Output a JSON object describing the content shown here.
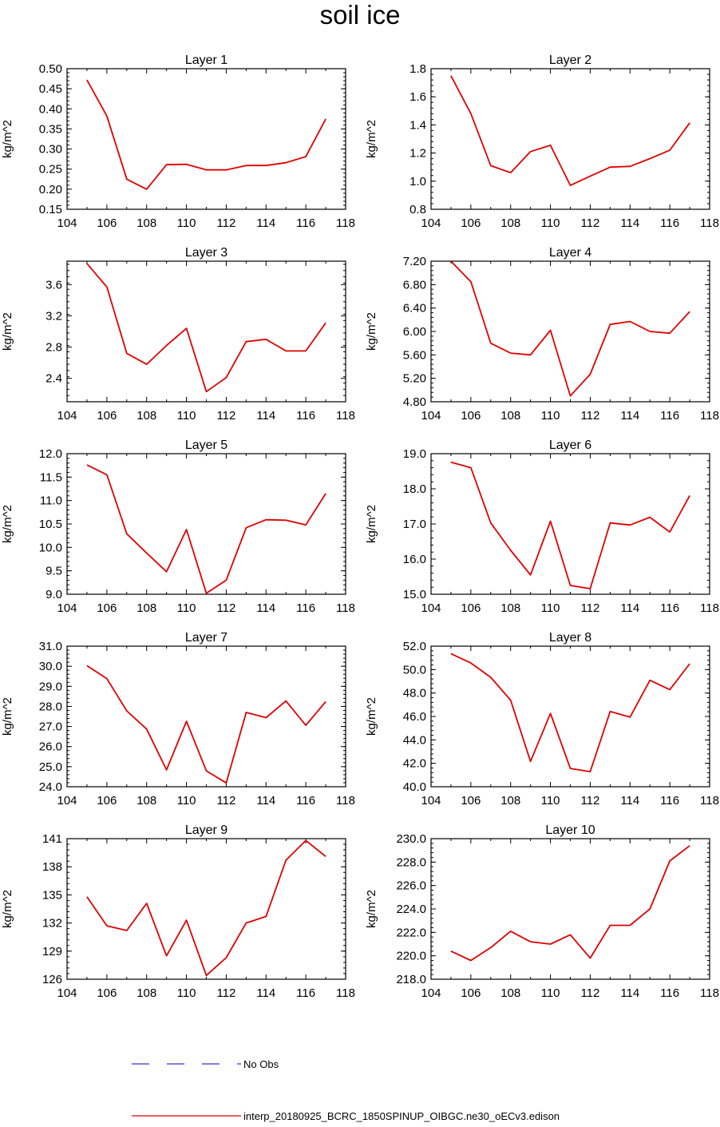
{
  "figure": {
    "title": "soil ice",
    "legend": [
      {
        "label": "No Obs",
        "color": "#0000cc",
        "dash": true
      },
      {
        "label": "interp_20180925_BCRC_1850SPINUP_OIBGC.ne30_oECv3.edison",
        "color": "#e00000",
        "dash": false
      }
    ]
  },
  "chart_data": [
    {
      "type": "line",
      "title": "Layer 1",
      "ylabel": "kg/m^2",
      "x": [
        105,
        106,
        107,
        108,
        109,
        110,
        111,
        112,
        113,
        114,
        115,
        116,
        117
      ],
      "series": [
        {
          "values": [
            0.472,
            0.382,
            0.225,
            0.2,
            0.261,
            0.262,
            0.248,
            0.248,
            0.259,
            0.259,
            0.266,
            0.281,
            0.375
          ],
          "color": "#e00000"
        }
      ],
      "xlim": [
        104,
        118
      ],
      "ylim": [
        0.15,
        0.5
      ],
      "xticks": [
        "104",
        "106",
        "108",
        "110",
        "112",
        "114",
        "116",
        "118"
      ],
      "yticks": [
        "0.15",
        "0.20",
        "0.25",
        "0.30",
        "0.35",
        "0.40",
        "0.45",
        "0.50"
      ]
    },
    {
      "type": "line",
      "title": "Layer 2",
      "ylabel": "kg/m^2",
      "x": [
        105,
        106,
        107,
        108,
        109,
        110,
        111,
        112,
        113,
        114,
        115,
        116,
        117
      ],
      "series": [
        {
          "values": [
            1.75,
            1.48,
            1.11,
            1.06,
            1.21,
            1.255,
            0.97,
            1.035,
            1.1,
            1.105,
            1.16,
            1.22,
            1.415
          ],
          "color": "#e00000"
        }
      ],
      "xlim": [
        104,
        118
      ],
      "ylim": [
        0.8,
        1.8
      ],
      "xticks": [
        "104",
        "106",
        "108",
        "110",
        "112",
        "114",
        "116",
        "118"
      ],
      "yticks": [
        "0.8",
        "1.0",
        "1.2",
        "1.4",
        "1.6",
        "1.8"
      ]
    },
    {
      "type": "line",
      "title": "Layer 3",
      "ylabel": "kg/m^2",
      "x": [
        105,
        106,
        107,
        108,
        109,
        110,
        111,
        112,
        113,
        114,
        115,
        116,
        117
      ],
      "series": [
        {
          "values": [
            3.87,
            3.57,
            2.72,
            2.58,
            2.82,
            3.04,
            2.23,
            2.41,
            2.87,
            2.9,
            2.75,
            2.75,
            3.11
          ],
          "color": "#e00000"
        }
      ],
      "xlim": [
        104,
        118
      ],
      "ylim": [
        2.1,
        3.9
      ],
      "xticks": [
        "104",
        "106",
        "108",
        "110",
        "112",
        "114",
        "116",
        "118"
      ],
      "yticks": [
        "2.4",
        "2.8",
        "3.2",
        "3.6"
      ]
    },
    {
      "type": "line",
      "title": "Layer 4",
      "ylabel": "kg/m^2",
      "x": [
        105,
        106,
        107,
        108,
        109,
        110,
        111,
        112,
        113,
        114,
        115,
        116,
        117
      ],
      "series": [
        {
          "values": [
            7.2,
            6.85,
            5.8,
            5.63,
            5.6,
            6.02,
            4.9,
            5.27,
            6.12,
            6.17,
            6.0,
            5.97,
            6.34
          ],
          "color": "#e00000"
        }
      ],
      "xlim": [
        104,
        118
      ],
      "ylim": [
        4.8,
        7.2
      ],
      "xticks": [
        "104",
        "106",
        "108",
        "110",
        "112",
        "114",
        "116",
        "118"
      ],
      "yticks": [
        "4.80",
        "5.20",
        "5.60",
        "6.00",
        "6.40",
        "6.80",
        "7.20"
      ]
    },
    {
      "type": "line",
      "title": "Layer 5",
      "ylabel": "kg/m^2",
      "x": [
        105,
        106,
        107,
        108,
        109,
        110,
        111,
        112,
        113,
        114,
        115,
        116,
        117
      ],
      "series": [
        {
          "values": [
            11.76,
            11.55,
            10.29,
            9.88,
            9.48,
            10.38,
            9.02,
            9.3,
            10.42,
            10.59,
            10.58,
            10.48,
            11.15
          ],
          "color": "#e00000"
        }
      ],
      "xlim": [
        104,
        118
      ],
      "ylim": [
        9.0,
        12.0
      ],
      "xticks": [
        "104",
        "106",
        "108",
        "110",
        "112",
        "114",
        "116",
        "118"
      ],
      "yticks": [
        "9.0",
        "9.5",
        "10.0",
        "10.5",
        "11.0",
        "11.5",
        "12.0"
      ]
    },
    {
      "type": "line",
      "title": "Layer 6",
      "ylabel": "kg/m^2",
      "x": [
        105,
        106,
        107,
        108,
        109,
        110,
        111,
        112,
        113,
        114,
        115,
        116,
        117
      ],
      "series": [
        {
          "values": [
            18.76,
            18.6,
            17.03,
            16.25,
            15.55,
            17.08,
            15.25,
            15.16,
            17.03,
            16.97,
            17.19,
            16.77,
            17.81
          ],
          "color": "#e00000"
        }
      ],
      "xlim": [
        104,
        118
      ],
      "ylim": [
        15.0,
        19.0
      ],
      "xticks": [
        "104",
        "106",
        "108",
        "110",
        "112",
        "114",
        "116",
        "118"
      ],
      "yticks": [
        "15.0",
        "16.0",
        "17.0",
        "18.0",
        "19.0"
      ]
    },
    {
      "type": "line",
      "title": "Layer 7",
      "ylabel": "kg/m^2",
      "x": [
        105,
        106,
        107,
        108,
        109,
        110,
        111,
        112,
        113,
        114,
        115,
        116,
        117
      ],
      "series": [
        {
          "values": [
            30.03,
            29.38,
            27.78,
            26.87,
            24.84,
            27.26,
            24.79,
            24.19,
            27.7,
            27.44,
            28.27,
            27.06,
            28.24
          ],
          "color": "#e00000"
        }
      ],
      "xlim": [
        104,
        118
      ],
      "ylim": [
        24.0,
        31.0
      ],
      "xticks": [
        "104",
        "106",
        "108",
        "110",
        "112",
        "114",
        "116",
        "118"
      ],
      "yticks": [
        "24.0",
        "25.0",
        "26.0",
        "27.0",
        "28.0",
        "29.0",
        "30.0",
        "31.0"
      ]
    },
    {
      "type": "line",
      "title": "Layer 8",
      "ylabel": "kg/m^2",
      "x": [
        105,
        106,
        107,
        108,
        109,
        110,
        111,
        112,
        113,
        114,
        115,
        116,
        117
      ],
      "series": [
        {
          "values": [
            51.36,
            50.56,
            49.34,
            47.39,
            42.16,
            46.26,
            41.56,
            41.29,
            46.42,
            45.94,
            49.09,
            48.29,
            50.5
          ],
          "color": "#e00000"
        }
      ],
      "xlim": [
        104,
        118
      ],
      "ylim": [
        40.0,
        52.0
      ],
      "xticks": [
        "104",
        "106",
        "108",
        "110",
        "112",
        "114",
        "116",
        "118"
      ],
      "yticks": [
        "40.0",
        "42.0",
        "44.0",
        "46.0",
        "48.0",
        "50.0",
        "52.0"
      ]
    },
    {
      "type": "line",
      "title": "Layer 9",
      "ylabel": "kg/m^2",
      "x": [
        105,
        106,
        107,
        108,
        109,
        110,
        111,
        112,
        113,
        114,
        115,
        116,
        117
      ],
      "series": [
        {
          "values": [
            134.8,
            131.7,
            131.2,
            134.1,
            128.5,
            132.3,
            126.4,
            128.3,
            132.0,
            132.7,
            138.7,
            140.8,
            139.1
          ],
          "color": "#e00000"
        }
      ],
      "xlim": [
        104,
        118
      ],
      "ylim": [
        126,
        141
      ],
      "xticks": [
        "104",
        "106",
        "108",
        "110",
        "112",
        "114",
        "116",
        "118"
      ],
      "yticks": [
        "126",
        "129",
        "132",
        "135",
        "138",
        "141"
      ]
    },
    {
      "type": "line",
      "title": "Layer 10",
      "ylabel": "kg/m^2",
      "x": [
        105,
        106,
        107,
        108,
        109,
        110,
        111,
        112,
        113,
        114,
        115,
        116,
        117
      ],
      "series": [
        {
          "values": [
            220.4,
            219.6,
            220.7,
            222.1,
            221.2,
            221.0,
            221.8,
            219.8,
            222.6,
            222.6,
            224.0,
            228.1,
            229.4
          ],
          "color": "#e00000"
        }
      ],
      "xlim": [
        104,
        118
      ],
      "ylim": [
        218.0,
        230.0
      ],
      "xticks": [
        "104",
        "106",
        "108",
        "110",
        "112",
        "114",
        "116",
        "118"
      ],
      "yticks": [
        "218.0",
        "220.0",
        "222.0",
        "224.0",
        "226.0",
        "228.0",
        "230.0"
      ]
    }
  ]
}
